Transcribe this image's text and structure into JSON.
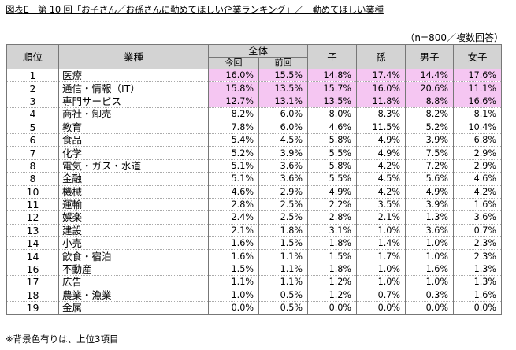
{
  "title": "図表E　第 10 回「お子さん／お孫さんに勤めてほしい企業ランキング」／　勤めてほしい業種",
  "sample_note": "（n=800／複数回答）",
  "headers": {
    "rank": "順位",
    "industry": "業種",
    "overall": "全体",
    "current": "今回",
    "previous": "前回",
    "child": "子",
    "grandchild": "孫",
    "son": "男子",
    "daughter": "女子"
  },
  "rows": [
    {
      "rank": "1",
      "industry": "医療",
      "current": "16.0%",
      "previous": "15.5%",
      "child": "14.8%",
      "grandchild": "17.4%",
      "son": "14.4%",
      "daughter": "17.6%",
      "highlight": true
    },
    {
      "rank": "2",
      "industry": "通信・情報（IT）",
      "current": "15.8%",
      "previous": "13.5%",
      "child": "15.7%",
      "grandchild": "16.0%",
      "son": "20.6%",
      "daughter": "11.1%",
      "highlight": true
    },
    {
      "rank": "3",
      "industry": "専門サービス",
      "current": "12.7%",
      "previous": "13.1%",
      "child": "13.5%",
      "grandchild": "11.8%",
      "son": "8.8%",
      "daughter": "16.6%",
      "highlight": true
    },
    {
      "rank": "4",
      "industry": "商社・卸売",
      "current": "8.2%",
      "previous": "6.0%",
      "child": "8.0%",
      "grandchild": "8.3%",
      "son": "8.2%",
      "daughter": "8.1%",
      "highlight": false
    },
    {
      "rank": "5",
      "industry": "教育",
      "current": "7.8%",
      "previous": "6.0%",
      "child": "4.6%",
      "grandchild": "11.5%",
      "son": "5.2%",
      "daughter": "10.4%",
      "highlight": false
    },
    {
      "rank": "6",
      "industry": "食品",
      "current": "5.4%",
      "previous": "4.5%",
      "child": "5.8%",
      "grandchild": "4.9%",
      "son": "3.9%",
      "daughter": "6.8%",
      "highlight": false
    },
    {
      "rank": "7",
      "industry": "化学",
      "current": "5.2%",
      "previous": "3.9%",
      "child": "5.5%",
      "grandchild": "4.9%",
      "son": "7.5%",
      "daughter": "2.9%",
      "highlight": false
    },
    {
      "rank": "8",
      "industry": "電気・ガス・水道",
      "current": "5.1%",
      "previous": "3.6%",
      "child": "5.8%",
      "grandchild": "4.2%",
      "son": "7.2%",
      "daughter": "2.9%",
      "highlight": false
    },
    {
      "rank": "8",
      "industry": "金融",
      "current": "5.1%",
      "previous": "3.6%",
      "child": "5.5%",
      "grandchild": "4.5%",
      "son": "5.6%",
      "daughter": "4.6%",
      "highlight": false
    },
    {
      "rank": "10",
      "industry": "機械",
      "current": "4.6%",
      "previous": "2.9%",
      "child": "4.9%",
      "grandchild": "4.2%",
      "son": "4.9%",
      "daughter": "4.2%",
      "highlight": false
    },
    {
      "rank": "11",
      "industry": "運輸",
      "current": "2.8%",
      "previous": "2.5%",
      "child": "2.2%",
      "grandchild": "3.5%",
      "son": "3.9%",
      "daughter": "1.6%",
      "highlight": false
    },
    {
      "rank": "12",
      "industry": "娯楽",
      "current": "2.4%",
      "previous": "2.5%",
      "child": "2.8%",
      "grandchild": "2.1%",
      "son": "1.3%",
      "daughter": "3.6%",
      "highlight": false
    },
    {
      "rank": "13",
      "industry": "建設",
      "current": "2.1%",
      "previous": "1.8%",
      "child": "3.1%",
      "grandchild": "1.0%",
      "son": "3.6%",
      "daughter": "0.7%",
      "highlight": false
    },
    {
      "rank": "14",
      "industry": "小売",
      "current": "1.6%",
      "previous": "1.5%",
      "child": "1.8%",
      "grandchild": "1.4%",
      "son": "1.0%",
      "daughter": "2.3%",
      "highlight": false
    },
    {
      "rank": "14",
      "industry": "飲食・宿泊",
      "current": "1.6%",
      "previous": "1.1%",
      "child": "1.5%",
      "grandchild": "1.7%",
      "son": "1.0%",
      "daughter": "2.3%",
      "highlight": false
    },
    {
      "rank": "16",
      "industry": "不動産",
      "current": "1.5%",
      "previous": "1.1%",
      "child": "1.8%",
      "grandchild": "1.0%",
      "son": "1.6%",
      "daughter": "1.3%",
      "highlight": false
    },
    {
      "rank": "17",
      "industry": "広告",
      "current": "1.1%",
      "previous": "1.1%",
      "child": "1.2%",
      "grandchild": "1.0%",
      "son": "1.0%",
      "daughter": "1.3%",
      "highlight": false
    },
    {
      "rank": "18",
      "industry": "農業・漁業",
      "current": "1.0%",
      "previous": "0.5%",
      "child": "1.2%",
      "grandchild": "0.7%",
      "son": "0.3%",
      "daughter": "1.6%",
      "highlight": false
    },
    {
      "rank": "19",
      "industry": "金属",
      "current": "0.0%",
      "previous": "0.5%",
      "child": "0.0%",
      "grandchild": "0.0%",
      "son": "0.0%",
      "daughter": "0.0%",
      "highlight": false
    }
  ],
  "footnote": "※背景色有りは、上位3項目",
  "colors": {
    "header_background": "#d3d3d3",
    "highlight_background": "#f5c6f2",
    "border": "#777777"
  }
}
